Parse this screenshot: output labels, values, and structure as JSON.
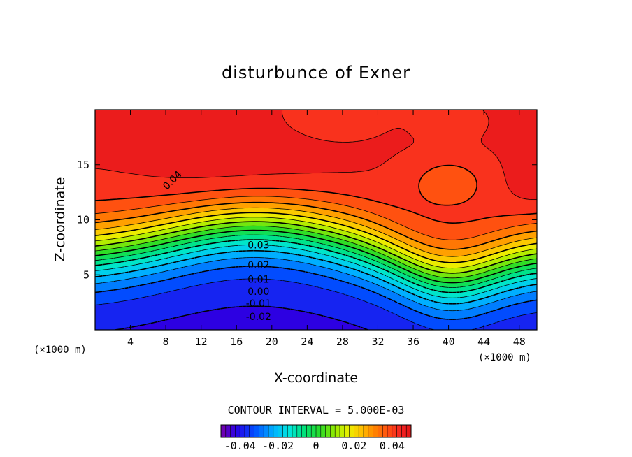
{
  "chart_data": {
    "type": "heatmap",
    "title": "disturbunce of Exner",
    "xlabel": "X-coordinate",
    "ylabel": "Z-coordinate",
    "x_unit": "(×1000 m)",
    "y_unit": "(×1000 m)",
    "xlim": [
      0,
      50
    ],
    "ylim": [
      0,
      20
    ],
    "x_ticks": [
      4,
      8,
      12,
      16,
      20,
      24,
      28,
      32,
      36,
      40,
      44,
      48
    ],
    "y_ticks": [
      5,
      10,
      15
    ],
    "contour_interval_text": "CONTOUR INTERVAL = 5.000E-03",
    "contour_interval": 0.005,
    "value_range": [
      -0.05,
      0.05
    ],
    "contour_labels": [
      {
        "text": "0.04",
        "x": 9,
        "z": 13.7
      },
      {
        "text": "0.03",
        "x": 18.5,
        "z": 7.7
      },
      {
        "text": "0.02",
        "x": 18.5,
        "z": 5.9
      },
      {
        "text": "0.01",
        "x": 18.5,
        "z": 4.6
      },
      {
        "text": "0.00",
        "x": 18.5,
        "z": 3.5
      },
      {
        "text": "-0.01",
        "x": 18.5,
        "z": 2.4
      },
      {
        "text": "-0.02",
        "x": 18.5,
        "z": 1.2
      }
    ],
    "colorbar": {
      "min": -0.05,
      "max": 0.05,
      "tick_labels": [
        "-0.04",
        "-0.02",
        "0",
        "0.02",
        "0.04"
      ],
      "tick_values": [
        -0.04,
        -0.02,
        0,
        0.02,
        0.04
      ]
    }
  }
}
